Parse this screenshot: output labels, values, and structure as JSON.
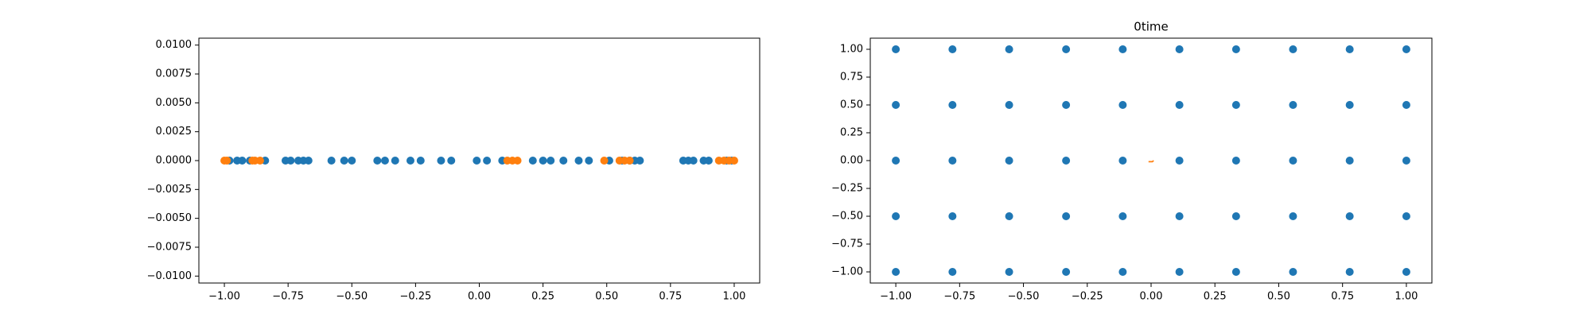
{
  "chart_data": [
    {
      "type": "scatter",
      "xlim": [
        -1.1,
        1.1
      ],
      "ylim": [
        -0.0106,
        0.0106
      ],
      "xticks": [
        {
          "value": -1,
          "label": "−1.00"
        },
        {
          "value": -0.75,
          "label": "−0.75"
        },
        {
          "value": -0.5,
          "label": "−0.50"
        },
        {
          "value": -0.25,
          "label": "−0.25"
        },
        {
          "value": 0,
          "label": "0.00"
        },
        {
          "value": 0.25,
          "label": "0.25"
        },
        {
          "value": 0.5,
          "label": "0.50"
        },
        {
          "value": 0.75,
          "label": "0.75"
        },
        {
          "value": 1,
          "label": "1.00"
        }
      ],
      "yticks": [
        {
          "value": -0.01,
          "label": "−0.0100"
        },
        {
          "value": -0.0075,
          "label": "−0.0075"
        },
        {
          "value": -0.005,
          "label": "−0.0050"
        },
        {
          "value": -0.0025,
          "label": "−0.0025"
        },
        {
          "value": 0,
          "label": "0.0000"
        },
        {
          "value": 0.0025,
          "label": "0.0025"
        },
        {
          "value": 0.005,
          "label": "0.0050"
        },
        {
          "value": 0.0075,
          "label": "0.0075"
        },
        {
          "value": 0.01,
          "label": "0.0100"
        }
      ],
      "series": [
        {
          "color": "#1f77b4",
          "mode": "points",
          "x": [
            -0.98,
            -0.95,
            -0.93,
            -0.9,
            -0.84,
            -0.76,
            -0.74,
            -0.71,
            -0.69,
            -0.67,
            -0.58,
            -0.53,
            -0.5,
            -0.4,
            -0.37,
            -0.33,
            -0.27,
            -0.23,
            -0.15,
            -0.11,
            -0.01,
            0.03,
            0.09,
            0.21,
            0.25,
            0.28,
            0.33,
            0.39,
            0.43,
            0.51,
            0.56,
            0.59,
            0.61,
            0.63,
            0.8,
            0.82,
            0.84,
            0.88,
            0.9,
            0.97,
            0.99
          ],
          "y": [
            0,
            0,
            0,
            0,
            0,
            0,
            0,
            0,
            0,
            0,
            0,
            0,
            0,
            0,
            0,
            0,
            0,
            0,
            0,
            0,
            0,
            0,
            0,
            0,
            0,
            0,
            0,
            0,
            0,
            0,
            0,
            0,
            0,
            0,
            0,
            0,
            0,
            0,
            0,
            0,
            0
          ]
        },
        {
          "color": "#ff7f0e",
          "mode": "points",
          "x": [
            -1.0,
            -0.99,
            -0.89,
            -0.88,
            -0.86,
            0.11,
            0.13,
            0.15,
            0.49,
            0.55,
            0.57,
            0.59,
            0.94,
            0.96,
            0.98,
            1.0
          ],
          "y": [
            0,
            0,
            0,
            0,
            0,
            0,
            0,
            0,
            0,
            0,
            0,
            0,
            0,
            0,
            0,
            0
          ]
        }
      ]
    },
    {
      "type": "scatter",
      "title": "0time",
      "xlim": [
        -1.1,
        1.1
      ],
      "ylim": [
        -1.1,
        1.1
      ],
      "xticks": [
        {
          "value": -1,
          "label": "−1.00"
        },
        {
          "value": -0.75,
          "label": "−0.75"
        },
        {
          "value": -0.5,
          "label": "−0.50"
        },
        {
          "value": -0.25,
          "label": "−0.25"
        },
        {
          "value": 0,
          "label": "0.00"
        },
        {
          "value": 0.25,
          "label": "0.25"
        },
        {
          "value": 0.5,
          "label": "0.50"
        },
        {
          "value": 0.75,
          "label": "0.75"
        },
        {
          "value": 1,
          "label": "1.00"
        }
      ],
      "yticks": [
        {
          "value": -1,
          "label": "−1.00"
        },
        {
          "value": -0.75,
          "label": "−0.75"
        },
        {
          "value": -0.5,
          "label": "−0.50"
        },
        {
          "value": -0.25,
          "label": "−0.25"
        },
        {
          "value": 0,
          "label": "0.00"
        },
        {
          "value": 0.25,
          "label": "0.25"
        },
        {
          "value": 0.5,
          "label": "0.50"
        },
        {
          "value": 0.75,
          "label": "0.75"
        },
        {
          "value": 1,
          "label": "1.00"
        }
      ],
      "series": [
        {
          "color": "#1f77b4",
          "mode": "points",
          "x": [
            -1,
            -0.778,
            -0.556,
            -0.333,
            -0.111,
            0.111,
            0.333,
            0.556,
            0.778,
            1,
            -1,
            -0.778,
            -0.556,
            -0.333,
            -0.111,
            0.111,
            0.333,
            0.556,
            0.778,
            1,
            -1,
            -0.778,
            -0.556,
            -0.333,
            -0.111,
            0.111,
            0.333,
            0.556,
            0.778,
            1,
            -1,
            -0.778,
            -0.556,
            -0.333,
            -0.111,
            0.111,
            0.333,
            0.556,
            0.778,
            1,
            -1,
            -0.778,
            -0.556,
            -0.333,
            -0.111,
            0.111,
            0.333,
            0.556,
            0.778,
            1
          ],
          "y": [
            1,
            1,
            1,
            1,
            1,
            1,
            1,
            1,
            1,
            1,
            0.5,
            0.5,
            0.5,
            0.5,
            0.5,
            0.5,
            0.5,
            0.5,
            0.5,
            0.5,
            0,
            0,
            0,
            0,
            0,
            0,
            0,
            0,
            0,
            0,
            -0.5,
            -0.5,
            -0.5,
            -0.5,
            -0.5,
            -0.5,
            -0.5,
            -0.5,
            -0.5,
            -0.5,
            -1,
            -1,
            -1,
            -1,
            -1,
            -1,
            -1,
            -1,
            -1,
            -1
          ]
        },
        {
          "color": "#ff7f0e",
          "mode": "line",
          "x": [
            -0.01,
            0.005,
            0.01
          ],
          "y": [
            -0.01,
            -0.01,
            0.0
          ]
        }
      ]
    }
  ]
}
